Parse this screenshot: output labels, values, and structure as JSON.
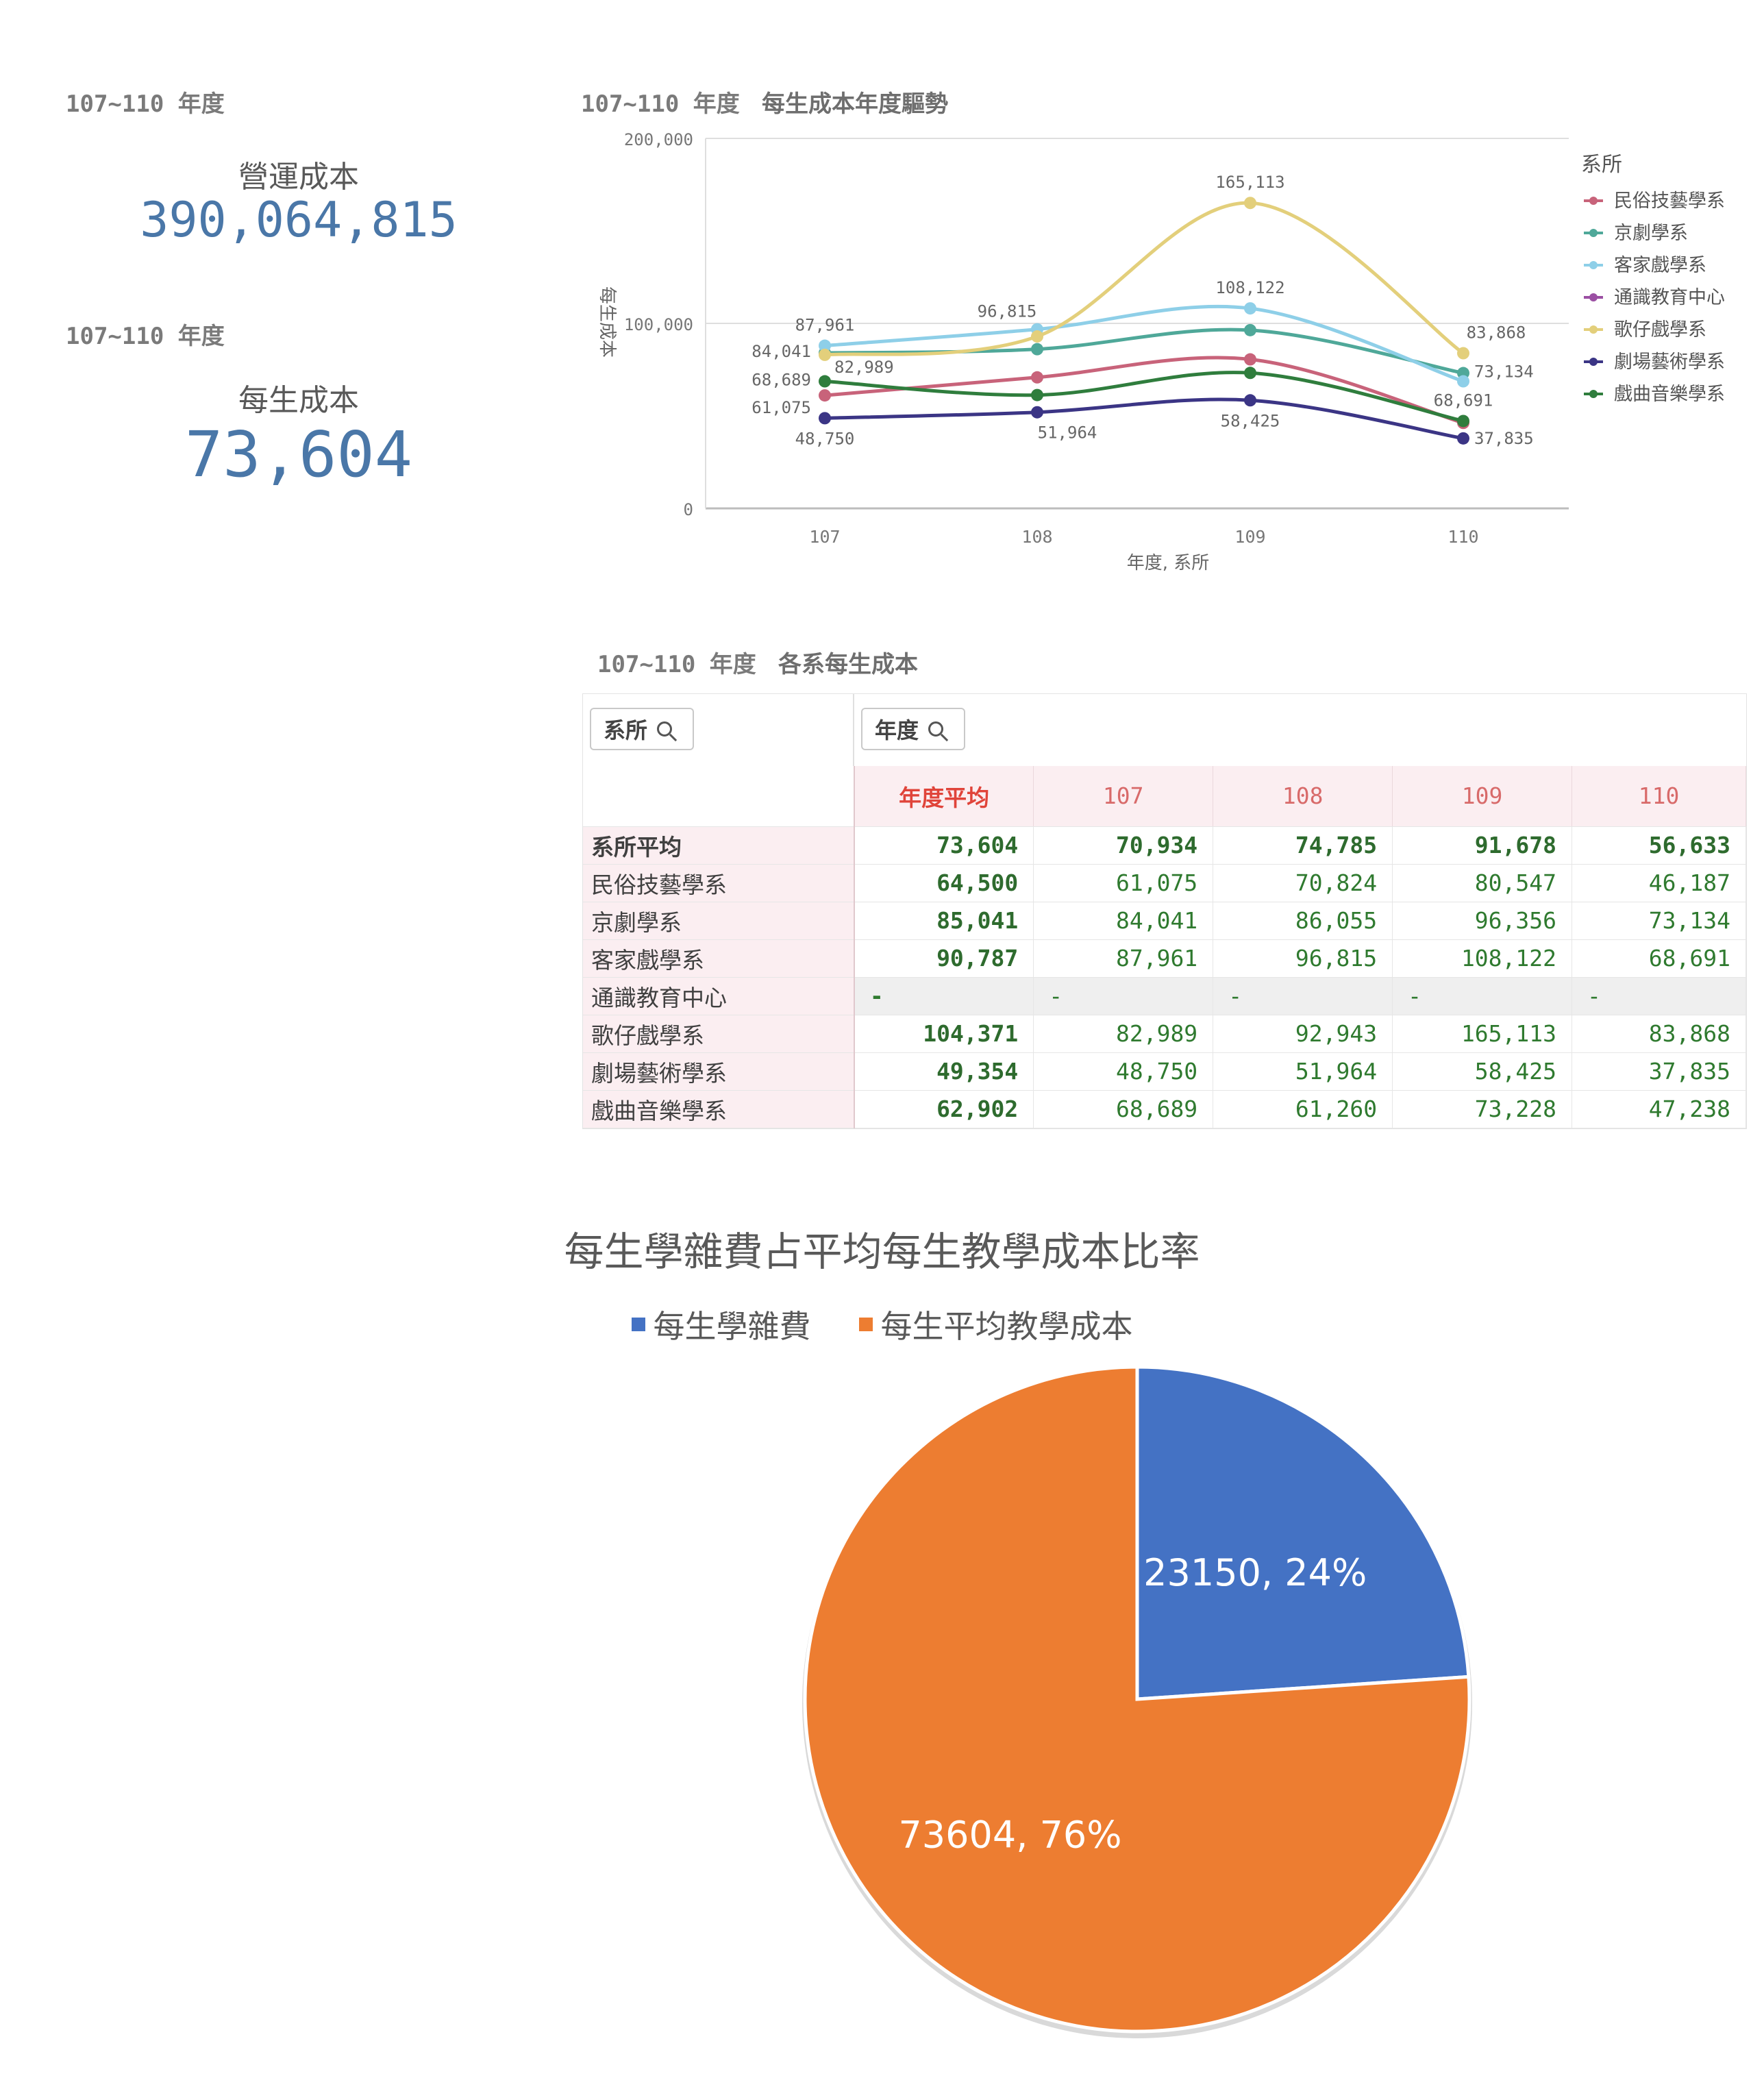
{
  "kpi": {
    "label1": "107~110 年度",
    "title1": "營運成本",
    "value1": "390,064,815",
    "label2": "107~110 年度",
    "title2": "每生成本",
    "value2": "73,604"
  },
  "line_chart_header": {
    "period": "107~110 年度",
    "title": "每生成本年度驅勢"
  },
  "table_header": {
    "period": "107~110 年度",
    "title": "各系每生成本"
  },
  "table": {
    "dept_search_label": "系所",
    "year_search_label": "年度",
    "columns": [
      "年度平均",
      "107",
      "108",
      "109",
      "110"
    ],
    "rows": [
      {
        "name": "系所平均",
        "values": [
          "73,604",
          "70,934",
          "74,785",
          "91,678",
          "56,633"
        ]
      },
      {
        "name": "民俗技藝學系",
        "values": [
          "64,500",
          "61,075",
          "70,824",
          "80,547",
          "46,187"
        ]
      },
      {
        "name": "京劇學系",
        "values": [
          "85,041",
          "84,041",
          "86,055",
          "96,356",
          "73,134"
        ]
      },
      {
        "name": "客家戲學系",
        "values": [
          "90,787",
          "87,961",
          "96,815",
          "108,122",
          "68,691"
        ]
      },
      {
        "name": "通識教育中心",
        "values": [
          "-",
          "-",
          "-",
          "-",
          "-"
        ]
      },
      {
        "name": "歌仔戲學系",
        "values": [
          "104,371",
          "82,989",
          "92,943",
          "165,113",
          "83,868"
        ]
      },
      {
        "name": "劇場藝術學系",
        "values": [
          "49,354",
          "48,750",
          "51,964",
          "58,425",
          "37,835"
        ]
      },
      {
        "name": "戲曲音樂學系",
        "values": [
          "62,902",
          "68,689",
          "61,260",
          "73,228",
          "47,238"
        ]
      }
    ]
  },
  "chart_data": [
    {
      "type": "line",
      "title": "每生成本年度驅勢",
      "xlabel": "年度, 系所",
      "ylabel": "每生成本",
      "ylim": [
        0,
        200000
      ],
      "yticks": [
        "0",
        "100,000",
        "200,000"
      ],
      "x": [
        "107",
        "108",
        "109",
        "110"
      ],
      "legend_title": "系所",
      "legend_position": "right",
      "series": [
        {
          "name": "民俗技藝學系",
          "color": "#c8637a",
          "values": [
            61075,
            70824,
            80547,
            46187
          ],
          "labels": [
            "61,075",
            "",
            "",
            ""
          ]
        },
        {
          "name": "京劇學系",
          "color": "#4fa899",
          "values": [
            84041,
            86055,
            96356,
            73134
          ],
          "labels": [
            "84,041",
            "",
            "",
            "73,134"
          ]
        },
        {
          "name": "客家戲學系",
          "color": "#8ecfe8",
          "values": [
            87961,
            96815,
            108122,
            68691
          ],
          "labels": [
            "87,961",
            "96,815",
            "108,122",
            "68,691"
          ]
        },
        {
          "name": "通識教育中心",
          "color": "#9b4fa3",
          "values": [
            null,
            null,
            null,
            null
          ],
          "labels": [
            "",
            "",
            "",
            ""
          ]
        },
        {
          "name": "歌仔戲學系",
          "color": "#e3cf7b",
          "values": [
            82989,
            92943,
            165113,
            83868
          ],
          "labels": [
            "82,989",
            "",
            "165,113",
            "83,868"
          ]
        },
        {
          "name": "劇場藝術學系",
          "color": "#3b3585",
          "values": [
            48750,
            51964,
            58425,
            37835
          ],
          "labels": [
            "48,750",
            "51,964",
            "58,425",
            "37,835"
          ]
        },
        {
          "name": "戲曲音樂學系",
          "color": "#2f7d3d",
          "values": [
            68689,
            61260,
            73228,
            47238
          ],
          "labels": [
            "68,689",
            "",
            "",
            ""
          ]
        }
      ]
    },
    {
      "type": "pie",
      "title": "每生學雜費占平均每生教學成本比率",
      "legend_position": "top",
      "slices": [
        {
          "name": "每生學雜費",
          "value": 23150,
          "percent": "24%",
          "label": "23150, 24%",
          "color": "#4472c4"
        },
        {
          "name": "每生平均教學成本",
          "value": 73604,
          "percent": "76%",
          "label": "73604, 76%",
          "color": "#ed7d31"
        }
      ]
    }
  ]
}
